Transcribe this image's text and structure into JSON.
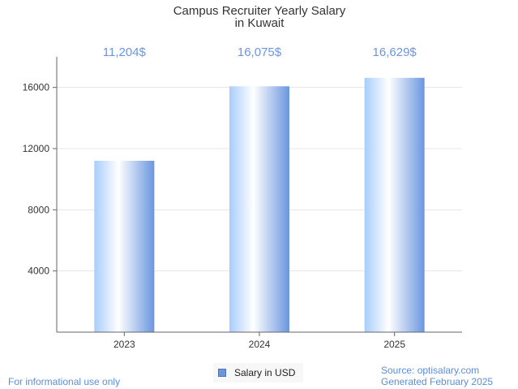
{
  "chart_data": {
    "type": "bar",
    "title": [
      "Campus Recruiter Yearly Salary",
      "in Kuwait"
    ],
    "categories": [
      "2023",
      "2024",
      "2025"
    ],
    "series": [
      {
        "name": "Salary in USD",
        "values": [
          11204,
          16075,
          16629
        ]
      }
    ],
    "data_labels": [
      "11,204$",
      "16,075$",
      "16,629$"
    ],
    "yticks": [
      4000,
      8000,
      12000,
      16000
    ],
    "ylim": [
      0,
      18000
    ],
    "grid": true,
    "legend_position": "bottom-center",
    "colors": {
      "bar_dark": "#6a96e0",
      "bar_light": "#ffffff",
      "bar_mid": "#a8cdfb",
      "label": "#6a96e0"
    }
  },
  "legend": {
    "label": "Salary in USD"
  },
  "footer": {
    "left": "For informational use only",
    "source": "Source: optisalary.com",
    "generated": "Generated February 2025"
  }
}
